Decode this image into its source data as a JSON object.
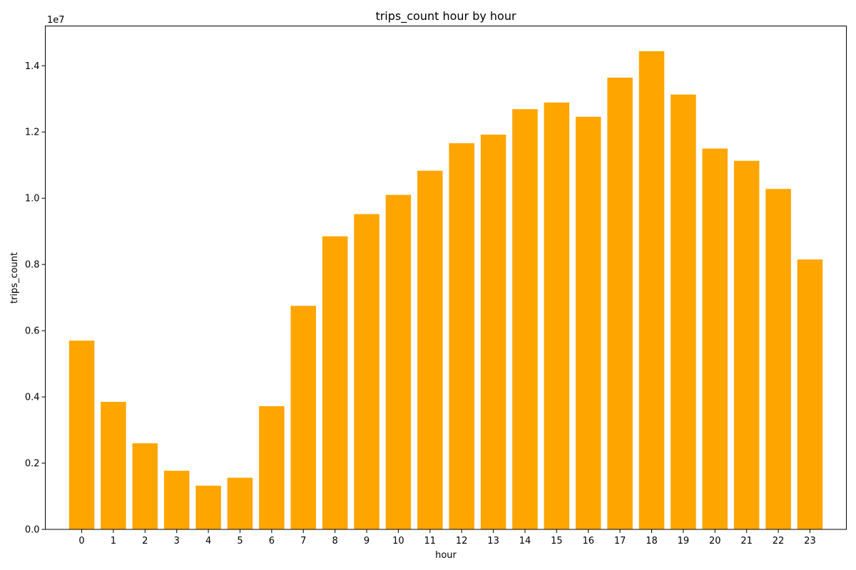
{
  "chart_data": {
    "type": "bar",
    "title": "trips_count hour by hour",
    "xlabel": "hour",
    "ylabel": "trips_count",
    "y_offset_label": "1e7",
    "y_scale": 10000000,
    "categories": [
      "0",
      "1",
      "2",
      "3",
      "4",
      "5",
      "6",
      "7",
      "8",
      "9",
      "10",
      "11",
      "12",
      "13",
      "14",
      "15",
      "16",
      "17",
      "18",
      "19",
      "20",
      "21",
      "22",
      "23"
    ],
    "values": [
      5700000,
      3850000,
      2600000,
      1770000,
      1320000,
      1560000,
      3720000,
      6750000,
      8850000,
      9520000,
      10100000,
      10830000,
      11660000,
      11920000,
      12690000,
      12890000,
      12460000,
      13640000,
      14440000,
      13130000,
      11500000,
      11130000,
      10280000,
      8150000
    ],
    "ylim": [
      0,
      15200000
    ],
    "yticks": [
      "0.0",
      "0.2",
      "0.4",
      "0.6",
      "0.8",
      "1.0",
      "1.2",
      "1.4"
    ],
    "bar_color": "#FFA500",
    "grid": false,
    "legend": "none"
  }
}
